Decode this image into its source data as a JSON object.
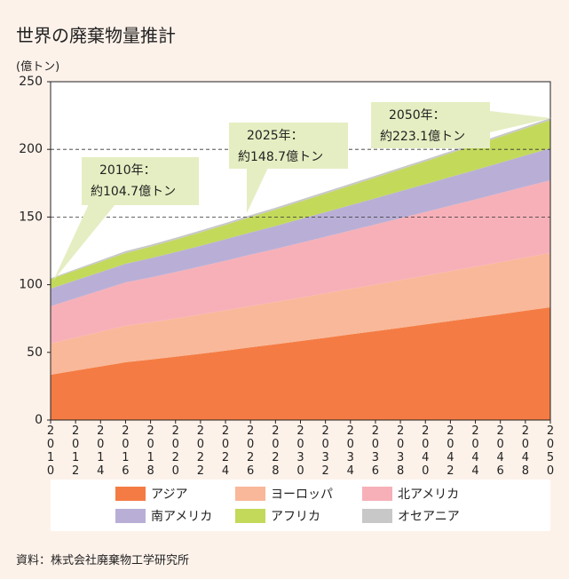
{
  "chart_data": {
    "type": "stacked_area",
    "title": "世界の廃棄物量推計",
    "y_label": "(億トン)",
    "source": "資料：株式会社廃棄物工学研究所",
    "categories": [
      "2010",
      "2012",
      "2014",
      "2016",
      "2018",
      "2020",
      "2022",
      "2024",
      "2026",
      "2028",
      "2030",
      "2032",
      "2034",
      "2036",
      "2038",
      "2040",
      "2042",
      "2044",
      "2046",
      "2048",
      "2050"
    ],
    "series": [
      {
        "name": "アジア",
        "color": "#f47c44",
        "values": [
          33.5,
          36.6,
          39.6,
          42.7,
          44.7,
          46.8,
          49.0,
          51.3,
          53.7,
          56.0,
          58.4,
          60.8,
          63.3,
          65.7,
          68.2,
          70.7,
          73.2,
          75.7,
          78.2,
          80.8,
          83.3
        ]
      },
      {
        "name": "ヨーロッパ",
        "color": "#f9b899",
        "values": [
          23.0,
          24.3,
          25.6,
          26.9,
          27.5,
          28.2,
          29.0,
          29.7,
          30.5,
          31.2,
          32.0,
          32.8,
          33.6,
          34.4,
          35.2,
          36.0,
          36.8,
          37.6,
          38.4,
          39.3,
          40.1
        ]
      },
      {
        "name": "北アメリカ",
        "color": "#f7b0b8",
        "values": [
          27.6,
          29.1,
          30.6,
          32.1,
          33.1,
          34.3,
          35.5,
          36.7,
          38.0,
          39.2,
          40.5,
          41.8,
          43.1,
          44.4,
          45.7,
          47.0,
          48.4,
          49.7,
          51.1,
          52.4,
          53.8
        ]
      },
      {
        "name": "南アメリカ",
        "color": "#b9afd6",
        "values": [
          13.0,
          13.3,
          13.5,
          13.8,
          14.3,
          14.8,
          15.3,
          15.9,
          16.4,
          17.0,
          17.6,
          18.2,
          18.8,
          19.4,
          20.0,
          20.6,
          21.2,
          21.8,
          22.4,
          23.0,
          23.6
        ]
      },
      {
        "name": "アフリカ",
        "color": "#c3d95a",
        "values": [
          7.0,
          7.3,
          7.6,
          7.9,
          8.5,
          9.2,
          9.9,
          10.6,
          11.4,
          12.1,
          12.9,
          13.7,
          14.4,
          15.2,
          16.0,
          16.8,
          17.6,
          18.4,
          19.2,
          20.0,
          20.8
        ]
      },
      {
        "name": "オセアニア",
        "color": "#c8c8c8",
        "values": [
          0.6,
          0.9,
          1.2,
          1.4,
          1.4,
          1.4,
          1.4,
          1.4,
          1.4,
          1.4,
          1.4,
          1.4,
          1.4,
          1.4,
          1.4,
          1.4,
          1.4,
          1.4,
          1.4,
          1.4,
          1.5
        ]
      }
    ],
    "ylim": [
      0,
      250
    ],
    "yticks": [
      0,
      50,
      100,
      150,
      200,
      250
    ],
    "dashed_grid": [
      150,
      200
    ],
    "annotations": [
      {
        "lines": [
          "2010年：",
          "約104.7億トン"
        ]
      },
      {
        "lines": [
          "2025年：",
          "約148.7億トン"
        ]
      },
      {
        "lines": [
          "2050年：",
          "約223.1億トン"
        ]
      }
    ]
  }
}
